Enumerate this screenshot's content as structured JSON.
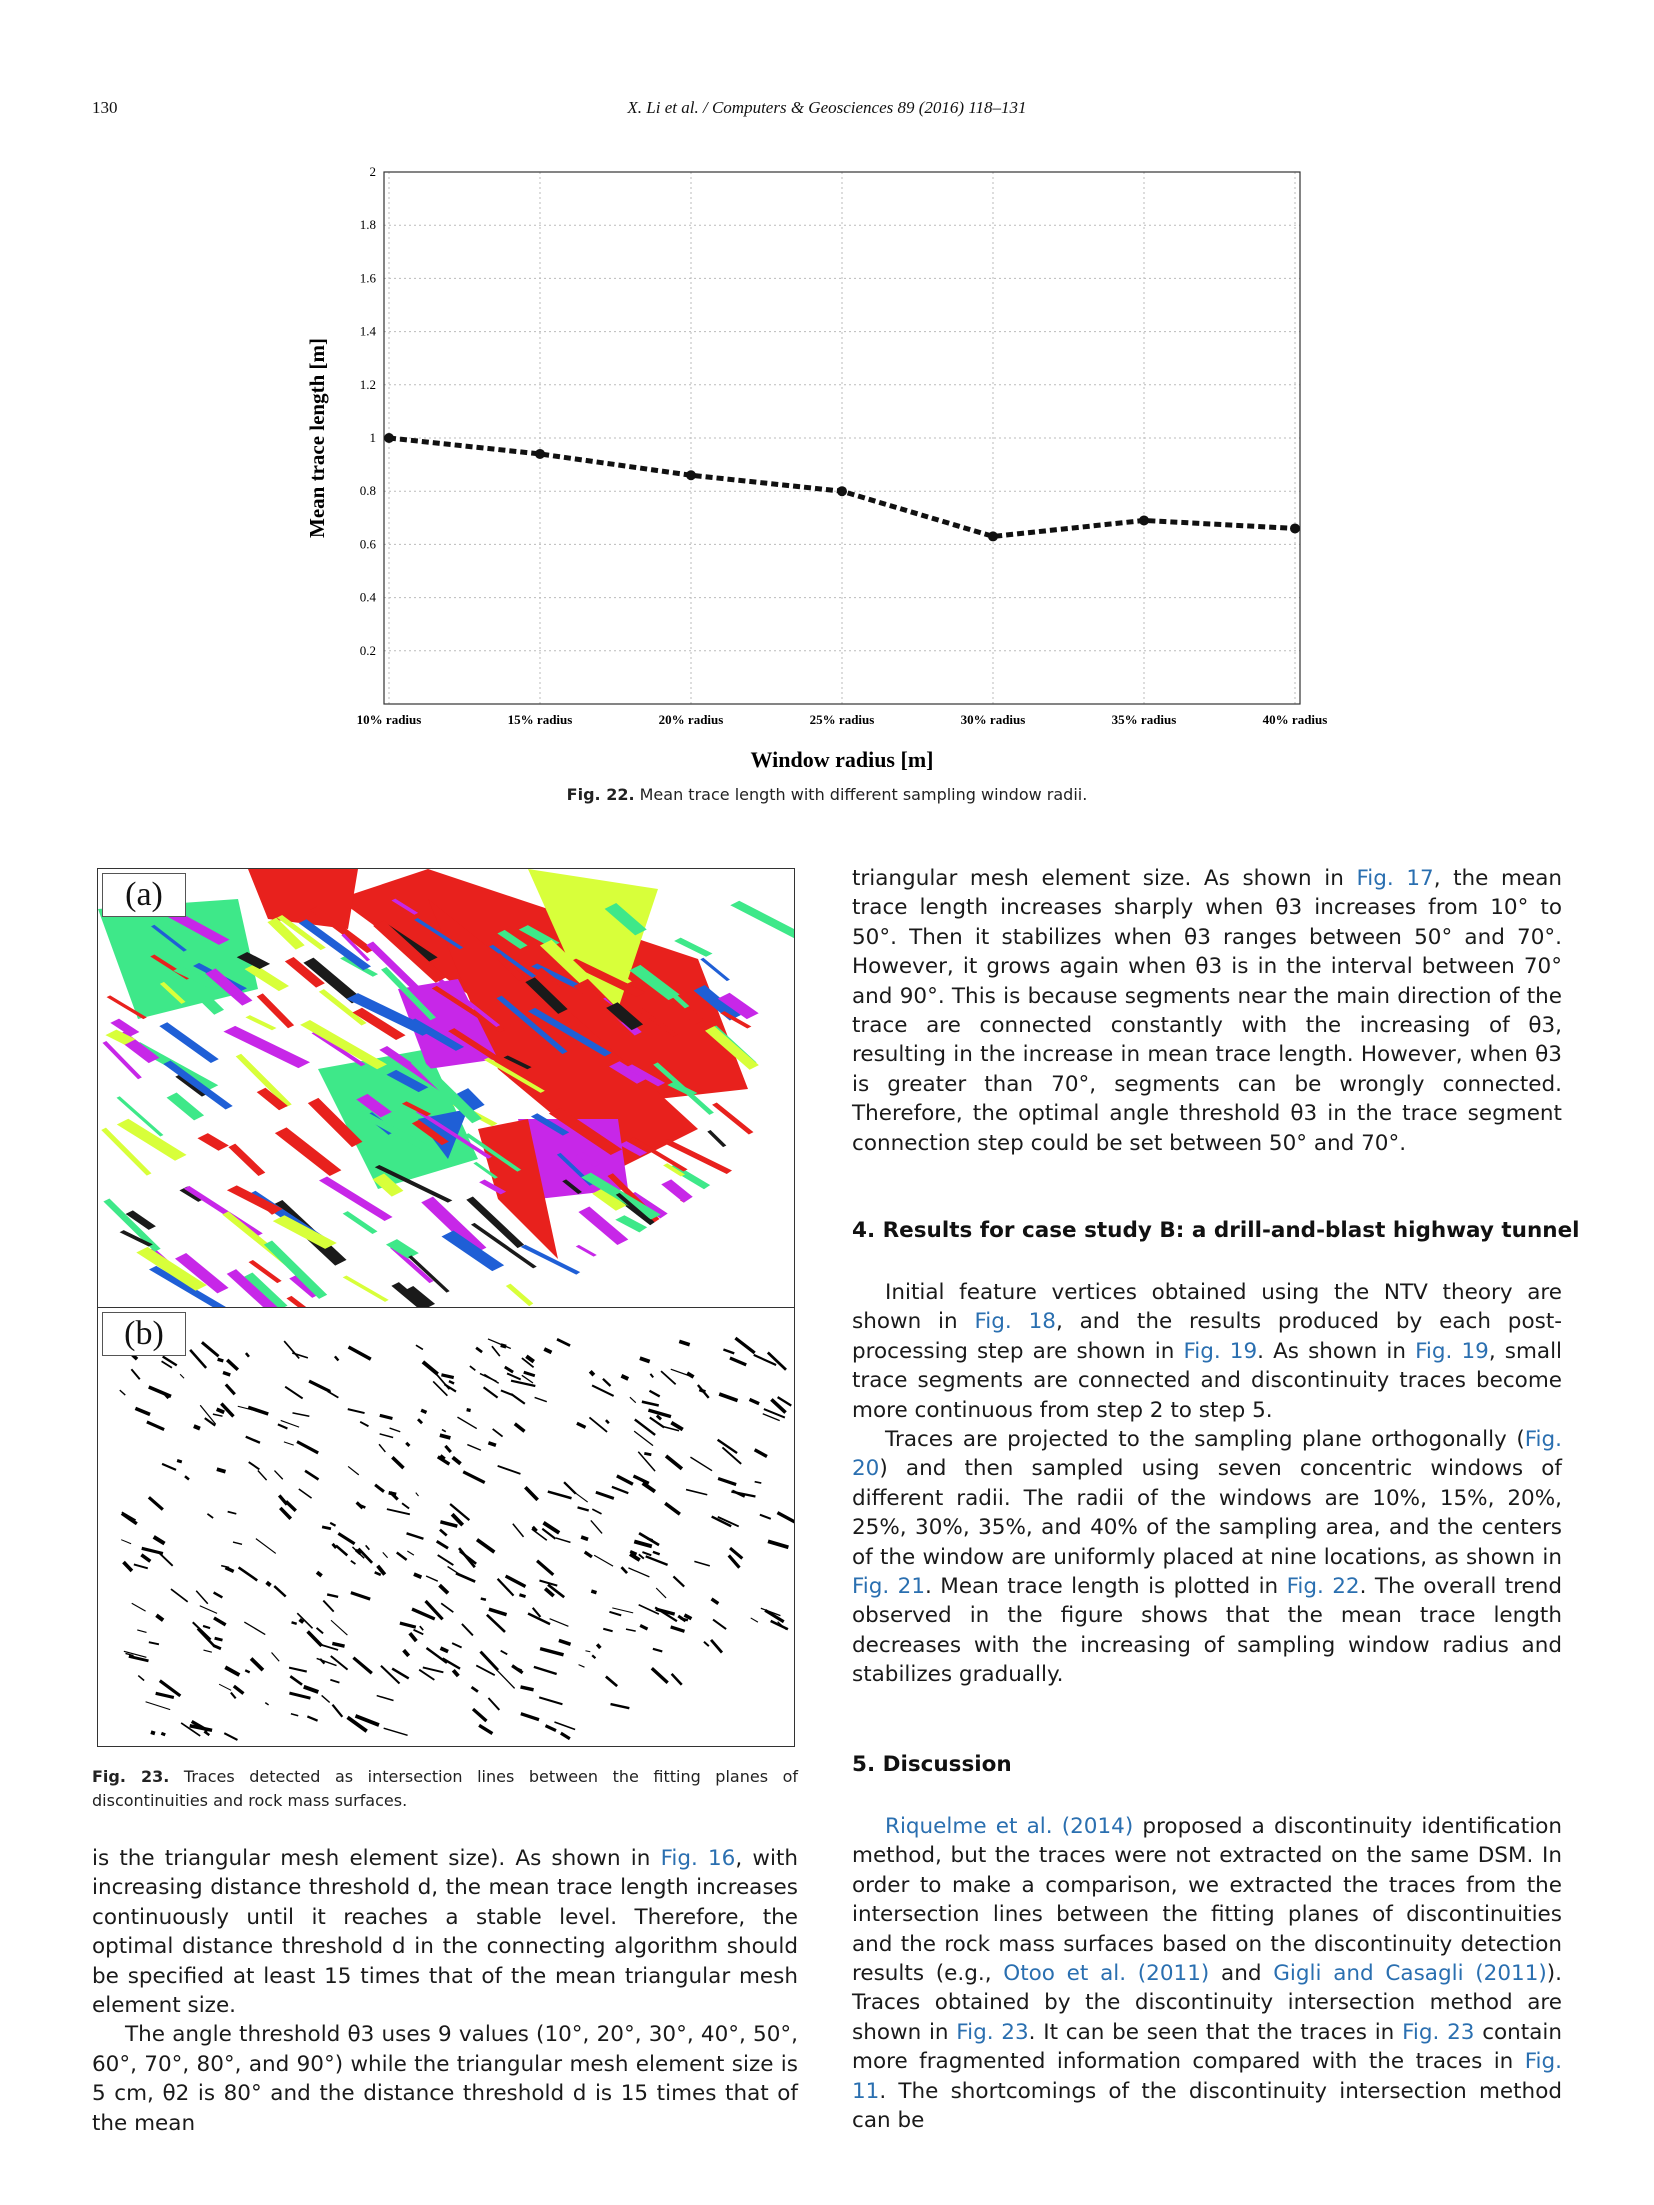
{
  "header": {
    "page_number": "130",
    "journal": "X. Li et al. / Computers & Geosciences 89 (2016) 118–131"
  },
  "chart_data": {
    "type": "line",
    "categories": [
      "10% radius",
      "15% radius",
      "20% radius",
      "25% radius",
      "30% radius",
      "35% radius",
      "40% radius"
    ],
    "series": [
      {
        "values": [
          1.0,
          0.94,
          0.86,
          0.8,
          0.63,
          0.69,
          0.66
        ]
      }
    ],
    "xlabel": "Window radius [m]",
    "ylabel": "Mean trace length [m]",
    "ylim": [
      0,
      2
    ],
    "yticks": [
      "0.2",
      "0.4",
      "0.6",
      "0.8",
      "1",
      "1.2",
      "1.4",
      "1.6",
      "1.8",
      "2"
    ],
    "grid": true,
    "line_style": "dashed",
    "line_color": "#111111"
  },
  "fig22_caption": {
    "label": "Fig. 22.",
    "text": "Mean trace length with different sampling window radii."
  },
  "fig23": {
    "panel_a_label": "(a)",
    "panel_b_label": "(b)",
    "caption_label": "Fig. 23.",
    "caption_text": "Traces detected as intersection lines between the fitting planes of discontinuities and rock mass surfaces.",
    "colors": [
      "#e8211d",
      "#1f5fd6",
      "#3ee889",
      "#c727e8",
      "#d8ff3a",
      "#1a1a1a"
    ]
  },
  "left_col": {
    "p1_a": "is the triangular mesh element size). As shown in ",
    "p1_link": "Fig. 16",
    "p1_b": ", with increasing distance threshold d, the mean trace length increases continuously until it reaches a stable level. Therefore, the optimal distance threshold d in the connecting algorithm should be specified at least 15 times that of the mean triangular mesh element size.",
    "p2": "The angle threshold θ3 uses 9 values (10°, 20°, 30°, 40°, 50°, 60°, 70°, 80°, and 90°) while the triangular mesh element size is 5 cm, θ2 is 80° and the distance threshold d is 15 times that of the mean"
  },
  "right_col": {
    "p1_a": "triangular mesh element size. As shown in ",
    "p1_link": "Fig. 17",
    "p1_b": ", the mean trace length increases sharply when θ3 increases from 10° to 50°. Then it stabilizes when θ3 ranges between 50° and 70°. However, it grows again when θ3 is in the interval between 70° and 90°. This is because segments near the main direction of the trace are connected constantly with the increasing of θ3, resulting in the increase in mean trace length. However, when θ3 is greater than 70°, segments can be wrongly connected. Therefore, the optimal angle threshold θ3 in the trace segment connection step could be set between 50° and 70°.",
    "heading4": "4.  Results for case study B: a drill-and-blast highway tunnel",
    "p2_a": "Initial feature vertices obtained using the NTV theory are shown in ",
    "p2_link1": "Fig. 18",
    "p2_b": ", and the results produced by each post-processing step are shown in ",
    "p2_link2": "Fig. 19",
    "p2_c": ". As shown in ",
    "p2_link3": "Fig. 19",
    "p2_d": ", small trace segments are connected and discontinuity traces become more continuous from step 2 to step 5.",
    "p3_a": "Traces are projected to the sampling plane orthogonally (",
    "p3_link1": "Fig. 20",
    "p3_b": ") and then sampled using seven concentric windows of different radii. The radii of the windows are 10%, 15%, 20%, 25%, 30%, 35%, and 40% of the sampling area, and the centers of the window are uniformly placed at nine locations, as shown in ",
    "p3_link2": "Fig. 21",
    "p3_c": ". Mean trace length is plotted in ",
    "p3_link3": "Fig. 22",
    "p3_d": ". The overall trend observed in the figure shows that the mean trace length decreases with the increasing of sampling window radius and stabilizes gradually.",
    "heading5": "5.  Discussion",
    "p4_link1": "Riquelme et al. (2014)",
    "p4_a": " proposed a discontinuity identification method, but the traces were not extracted on the same DSM. In order to make a comparison, we extracted the traces from the intersection lines between the fitting planes of discontinuities and the rock mass surfaces based on the discontinuity detection results (e.g., ",
    "p4_link2": "Otoo et al. (2011)",
    "p4_b": " and ",
    "p4_link3": "Gigli and Casagli (2011)",
    "p4_c": "). Traces obtained by the discontinuity intersection method are shown in ",
    "p4_link4": "Fig. 23",
    "p4_d": ". It can be seen that the traces in ",
    "p4_link5": "Fig. 23",
    "p4_e": " contain more fragmented information compared with the traces in ",
    "p4_link6": "Fig. 11",
    "p4_f": ". The shortcomings of the discontinuity intersection method can be"
  }
}
